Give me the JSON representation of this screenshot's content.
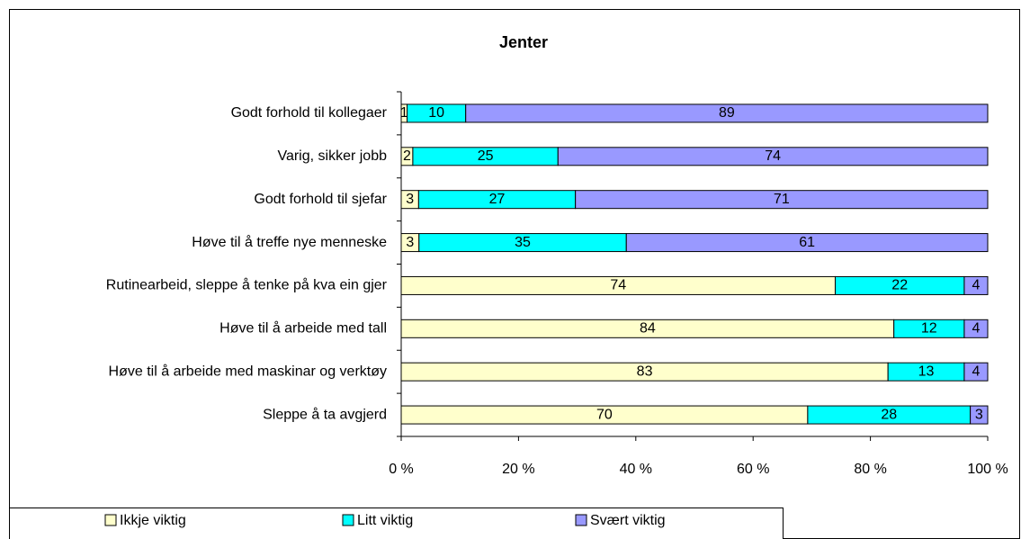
{
  "chart_data": {
    "type": "bar",
    "orientation": "horizontal",
    "stacking": "percent",
    "title": "Jenter",
    "categories": [
      "Godt forhold til kollegaer",
      "Varig, sikker jobb",
      "Godt forhold til sjefar",
      "Høve til å treffe nye menneske",
      "Rutinearbeid, sleppe å tenke på kva ein gjer",
      "Høve til å arbeide med tall",
      "Høve til å arbeide med maskinar og verktøy",
      "Sleppe å ta avgjerd"
    ],
    "series": [
      {
        "name": "Ikkje viktig",
        "color": "#ffffcc",
        "values": [
          1,
          2,
          3,
          3,
          74,
          84,
          83,
          70
        ]
      },
      {
        "name": "Litt viktig",
        "color": "#00ffff",
        "values": [
          10,
          25,
          27,
          35,
          22,
          12,
          13,
          28
        ]
      },
      {
        "name": "Svært viktig",
        "color": "#9999ff",
        "values": [
          89,
          74,
          71,
          61,
          4,
          4,
          4,
          3
        ]
      }
    ],
    "xlim": [
      0,
      100
    ],
    "xticks": [
      {
        "value": 0,
        "label": "0 %"
      },
      {
        "value": 20,
        "label": "20 %"
      },
      {
        "value": 40,
        "label": "40 %"
      },
      {
        "value": 60,
        "label": "60 %"
      },
      {
        "value": 80,
        "label": "80 %"
      },
      {
        "value": 100,
        "label": "100 %"
      }
    ],
    "grid": false,
    "legend": "bottom"
  }
}
